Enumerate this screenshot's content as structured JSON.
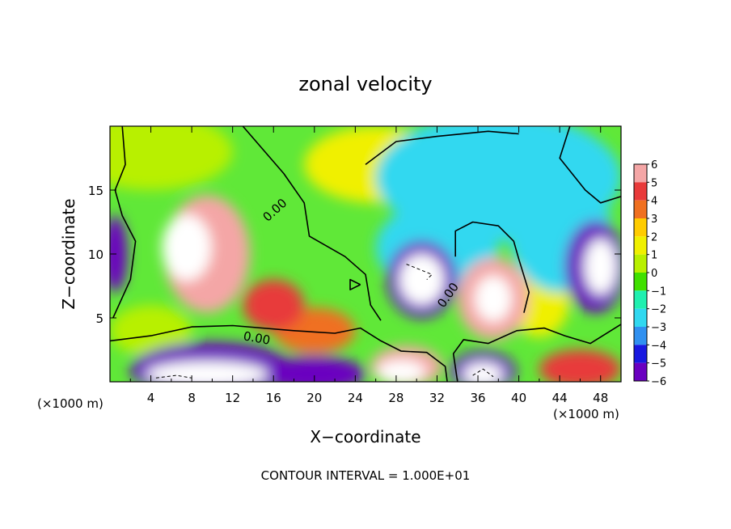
{
  "chart_data": {
    "type": "heatmap",
    "title": "zonal velocity",
    "xlabel": "X−coordinate",
    "ylabel": "Z−coordinate",
    "x_unit": "(×1000 m)",
    "y_unit": "(×1000 m)",
    "xlim": [
      0,
      50
    ],
    "ylim": [
      0,
      20
    ],
    "x_ticks": [
      "4",
      "8",
      "12",
      "16",
      "20",
      "24",
      "28",
      "32",
      "36",
      "40",
      "44",
      "48"
    ],
    "y_ticks": [
      "5",
      "10",
      "15"
    ],
    "colorbar": {
      "min": -6,
      "max": 6,
      "labels": [
        "6",
        "5",
        "4",
        "3",
        "2",
        "1",
        "0",
        "−1",
        "−2",
        "−3",
        "−4",
        "−5",
        "−6"
      ],
      "colors": [
        "#f4a6a6",
        "#e83a3a",
        "#f07020",
        "#ffcc00",
        "#f0f000",
        "#b8f000",
        "#40e000",
        "#20f0b0",
        "#30d8f0",
        "#3090f0",
        "#1818e0",
        "#6a00c0"
      ]
    },
    "contour_labels": [
      {
        "text": "0.00",
        "x": 16.4,
        "y": 13.2,
        "rotate": -42
      },
      {
        "text": "0.00",
        "x": 14.3,
        "y": 3.1,
        "rotate": 10
      },
      {
        "text": "0.00",
        "x": 33.4,
        "y": 6.6,
        "rotate": -55
      }
    ],
    "blobs": [
      {
        "x": 9.5,
        "y": 10.0,
        "value": 6,
        "rx": 4.2,
        "ry": 4.6
      },
      {
        "x": 7.5,
        "y": 10.5,
        "value": 9,
        "rx": 2.4,
        "ry": 2.6
      },
      {
        "x": 16.0,
        "y": 6.0,
        "value": 5,
        "rx": 3.0,
        "ry": 2.0
      },
      {
        "x": 20.0,
        "y": 4.0,
        "value": 4,
        "rx": 4.0,
        "ry": 1.8
      },
      {
        "x": 37.5,
        "y": 6.5,
        "value": 6,
        "rx": 3.5,
        "ry": 3.2
      },
      {
        "x": 37.5,
        "y": 6.5,
        "value": 9,
        "rx": 1.8,
        "ry": 1.8
      },
      {
        "x": 29.0,
        "y": 1.2,
        "value": 6,
        "rx": 3.5,
        "ry": 1.6
      },
      {
        "x": 28.5,
        "y": 0.8,
        "value": 9,
        "rx": 2.4,
        "ry": 0.9
      },
      {
        "x": 46.0,
        "y": 1.0,
        "value": 5,
        "rx": 4.0,
        "ry": 1.5
      },
      {
        "x": 30.5,
        "y": 8.0,
        "value": -6,
        "rx": 3.4,
        "ry": 3.0
      },
      {
        "x": 30.5,
        "y": 8.0,
        "value": -9,
        "rx": 2.2,
        "ry": 2.0
      },
      {
        "x": 47.5,
        "y": 9.0,
        "value": -6,
        "rx": 3.0,
        "ry": 3.6
      },
      {
        "x": 48.0,
        "y": 9.0,
        "value": -9,
        "rx": 1.6,
        "ry": 2.2
      },
      {
        "x": 10.0,
        "y": 0.9,
        "value": -6,
        "rx": 8.0,
        "ry": 2.2
      },
      {
        "x": 9.5,
        "y": 0.6,
        "value": -9,
        "rx": 6.0,
        "ry": 1.0
      },
      {
        "x": 20.0,
        "y": 0.6,
        "value": -6,
        "rx": 5.0,
        "ry": 1.4
      },
      {
        "x": 36.5,
        "y": 0.8,
        "value": -6,
        "rx": 3.2,
        "ry": 1.6
      },
      {
        "x": 36.5,
        "y": 0.6,
        "value": -9,
        "rx": 2.0,
        "ry": 0.9
      },
      {
        "x": 0.5,
        "y": 10.0,
        "value": -5,
        "rx": 1.2,
        "ry": 3.0
      },
      {
        "x": 38.0,
        "y": 16.0,
        "value": -2,
        "rx": 12.0,
        "ry": 5.0
      },
      {
        "x": 44.0,
        "y": 12.0,
        "value": -2,
        "rx": 5.0,
        "ry": 5.0
      },
      {
        "x": 32.0,
        "y": 10.5,
        "value": -2,
        "rx": 6.0,
        "ry": 3.5
      },
      {
        "x": 4.0,
        "y": 18.0,
        "value": 1,
        "rx": 8.0,
        "ry": 3.0
      },
      {
        "x": 26.0,
        "y": 17.0,
        "value": 1.5,
        "rx": 7.0,
        "ry": 3.0
      },
      {
        "x": 42.0,
        "y": 6.5,
        "value": 1.5,
        "rx": 3.0,
        "ry": 3.0
      },
      {
        "x": 4.0,
        "y": 4.0,
        "value": 1,
        "rx": 4.0,
        "ry": 2.0
      }
    ]
  },
  "footer": {
    "text": "CONTOUR INTERVAL = 1.000E+01"
  }
}
